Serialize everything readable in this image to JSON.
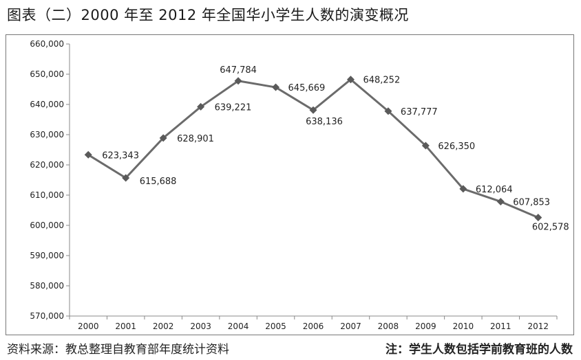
{
  "title": "图表（二）2000 年至 2012 年全国华小学生人数的演变概况",
  "footer": {
    "source": "资料来源：教总整理自教育部年度统计资料",
    "note": "注：学生人数包括学前教育班的人数"
  },
  "colors": {
    "line": "#6b6b6b",
    "marker": "#5a5a5a",
    "axis": "#888888"
  },
  "chart_data": {
    "type": "line",
    "x": [
      "2000",
      "2001",
      "2002",
      "2003",
      "2004",
      "2005",
      "2006",
      "2007",
      "2008",
      "2009",
      "2010",
      "2011",
      "2012"
    ],
    "series": [
      {
        "values": [
          623343,
          615688,
          628901,
          639221,
          647784,
          645669,
          638136,
          648252,
          637777,
          626350,
          612064,
          607853,
          602578
        ]
      }
    ],
    "data_labels": [
      "623,343",
      "615,688",
      "628,901",
      "639,221",
      "647,784",
      "645,669",
      "638,136",
      "648,252",
      "637,777",
      "626,350",
      "612,064",
      "607,853",
      "602,578"
    ],
    "y_ticks": [
      "570,000",
      "580,000",
      "590,000",
      "600,000",
      "610,000",
      "620,000",
      "630,000",
      "640,000",
      "650,000",
      "660,000"
    ],
    "ylim": [
      570000,
      660000
    ],
    "grid": false,
    "legend": "none"
  }
}
